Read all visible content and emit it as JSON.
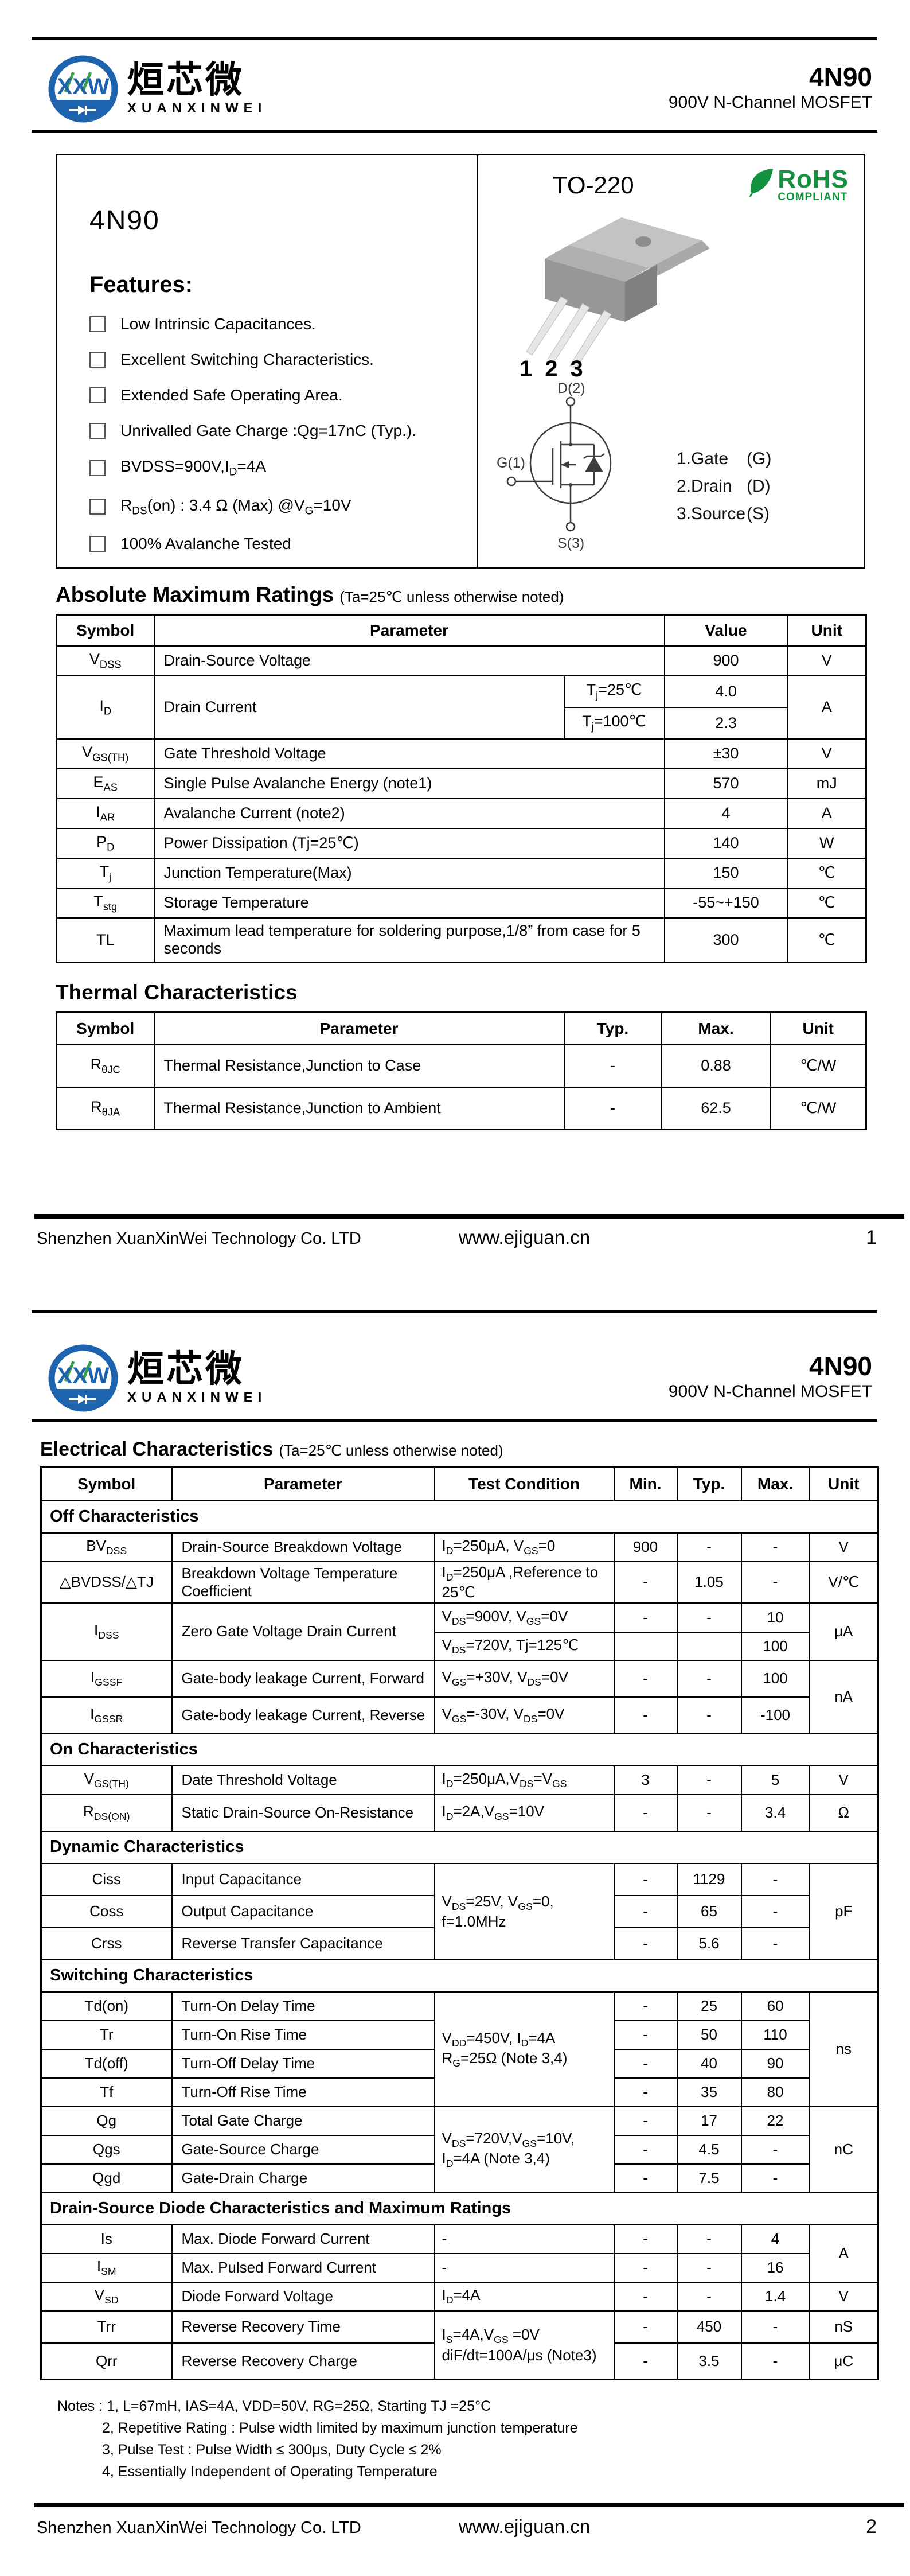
{
  "colors": {
    "brand_blue": "#1e63ad",
    "logo_green": "#35a048",
    "rohs_green": "#15923f",
    "text": "#000000"
  },
  "header": {
    "logo_monogram": "XXW",
    "brand_cn": "烜芯微",
    "brand_en": "XUANXINWEI",
    "part": "4N90",
    "subtitle": "900V N-Channel MOSFET"
  },
  "footer": {
    "company": "Shenzhen XuanXinWei Technology Co. LTD",
    "url": "www.ejiguan.cn",
    "page1": "1",
    "page2": "2"
  },
  "info": {
    "part": "4N90",
    "features_title": "Features:",
    "features": [
      "Low Intrinsic Capacitances.",
      "Excellent Switching Characteristics.",
      "Extended Safe Operating Area.",
      "Unrivalled Gate Charge :Qg=17nC (Typ.).",
      "BVDSS=900V,I<sub>D</sub>=4A",
      "R<sub>DS</sub>(on) : 3.4 Ω (Max) @V<sub>G</sub>=10V",
      "100% Avalanche Tested"
    ],
    "package_name": "TO-220",
    "rohs": {
      "line1": "RoHS",
      "line2": "COMPLIANT"
    },
    "pin_numbers": [
      "1",
      "2",
      "3"
    ],
    "symbol_labels": {
      "drain": "D(2)",
      "gate": "G(1)",
      "source": "S(3)"
    },
    "pin_legend": [
      {
        "name": "1.Gate",
        "pin": "(G)"
      },
      {
        "name": "2.Drain",
        "pin": "(D)"
      },
      {
        "name": "3.Source",
        "pin": "(S)"
      }
    ]
  },
  "abs_max": {
    "title": "Absolute Maximum Ratings",
    "note": "(Ta=25℃ unless otherwise noted)",
    "headers": [
      "Symbol",
      "Parameter",
      "Value",
      "Unit"
    ],
    "rows": {
      "vdss": {
        "sym": "V<sub>DSS</sub>",
        "param": "Drain-Source Voltage",
        "value": "900",
        "unit": "V"
      },
      "id": {
        "sym": "I<sub>D</sub>",
        "param": "Drain Current",
        "cond1": "T<sub>j</sub>=25℃",
        "val1": "4.0",
        "cond2": "T<sub>j</sub>=100℃",
        "val2": "2.3",
        "unit": "A"
      },
      "vgsth": {
        "sym": "V<sub>GS(TH)</sub>",
        "param": "Gate Threshold Voltage",
        "value": "±30",
        "unit": "V"
      },
      "eas": {
        "sym": "E<sub>AS</sub>",
        "param": "Single Pulse Avalanche Energy (note1)",
        "value": "570",
        "unit": "mJ"
      },
      "iar": {
        "sym": "I<sub>AR</sub>",
        "param": "Avalanche Current (note2)",
        "value": "4",
        "unit": "A"
      },
      "pd": {
        "sym": "P<sub>D</sub>",
        "param": "Power Dissipation (Tj=25℃)",
        "value": "140",
        "unit": "W"
      },
      "tj": {
        "sym": "T<sub>j</sub>",
        "param": "Junction Temperature(Max)",
        "value": "150",
        "unit": "℃"
      },
      "tstg": {
        "sym": "T<sub>stg</sub>",
        "param": "Storage Temperature",
        "value": "-55~+150",
        "unit": "℃"
      },
      "tl": {
        "sym": "TL",
        "param": "Maximum lead temperature for soldering purpose,1/8” from case for 5 seconds",
        "value": "300",
        "unit": "℃"
      }
    }
  },
  "thermal": {
    "title": "Thermal Characteristics",
    "headers": [
      "Symbol",
      "Parameter",
      "Typ.",
      "Max.",
      "Unit"
    ],
    "rows": {
      "rthjc": {
        "sym": "R<sub>θJC</sub>",
        "param": "Thermal Resistance,Junction to Case",
        "typ": "-",
        "max": "0.88",
        "unit": "℃/W"
      },
      "rthja": {
        "sym": "R<sub>θJA</sub>",
        "param": "Thermal Resistance,Junction to Ambient",
        "typ": "-",
        "max": "62.5",
        "unit": "℃/W"
      }
    }
  },
  "elec": {
    "title": "Electrical Characteristics",
    "note": "(Ta=25℃ unless otherwise noted)",
    "headers": [
      "Symbol",
      "Parameter",
      "Test Condition",
      "Min.",
      "Typ.",
      "Max.",
      "Unit"
    ],
    "sections": {
      "off": "Off Characteristics",
      "on": "On Characteristics",
      "dynamic": "Dynamic Characteristics",
      "switching": "Switching Characteristics",
      "diode": "Drain-Source Diode Characteristics and Maximum Ratings"
    },
    "rows": {
      "bvdss": {
        "sym": "BV<sub>DSS</sub>",
        "param": "Drain-Source Breakdown Voltage",
        "cond": "I<sub>D</sub>=250μA,  V<sub>GS</sub>=0",
        "min": "900",
        "typ": "-",
        "max": "-",
        "unit": "V"
      },
      "dbvdss": {
        "sym": "△BVDSS/△TJ",
        "param": "Breakdown Voltage Temperature Coefficient",
        "cond": "I<sub>D</sub>=250μA ,Reference to 25℃",
        "min": "-",
        "typ": "1.05",
        "max": "-",
        "unit": "V/℃"
      },
      "idss": {
        "sym": "I<sub>DSS</sub>",
        "param": "Zero Gate Voltage Drain Current",
        "cond1": "V<sub>DS</sub>=900V, V<sub>GS</sub>=0V",
        "min1": "-",
        "typ1": "-",
        "max1": "10",
        "cond2": "V<sub>DS</sub>=720V, Tj=125℃",
        "min2": "",
        "typ2": "",
        "max2": "100",
        "unit": "μA"
      },
      "igssf": {
        "sym": "I<sub>GSSF</sub>",
        "param": "Gate-body leakage Current, Forward",
        "cond": "V<sub>GS</sub>=+30V, V<sub>DS</sub>=0V",
        "min": "-",
        "typ": "-",
        "max": "100",
        "unit": "nA"
      },
      "igssr": {
        "sym": "I<sub>GSSR</sub>",
        "param": "Gate-body leakage Current, Reverse",
        "cond": "V<sub>GS</sub>=-30V, V<sub>DS</sub>=0V",
        "min": "-",
        "typ": "-",
        "max": "-100"
      },
      "vgsth": {
        "sym": "V<sub>GS(TH)</sub>",
        "param": "Date Threshold Voltage",
        "cond": "I<sub>D</sub>=250μA,V<sub>DS</sub>=V<sub>GS</sub>",
        "min": "3",
        "typ": "-",
        "max": "5",
        "unit": "V"
      },
      "rdson": {
        "sym": "R<sub>DS(ON)</sub>",
        "param": "Static Drain-Source On-Resistance",
        "cond": "I<sub>D</sub>=2A,V<sub>GS</sub>=10V",
        "min": "-",
        "typ": "-",
        "max": "3.4",
        "unit": "Ω"
      },
      "ciss": {
        "sym": "Ciss",
        "param": "Input Capacitance",
        "cond": "V<sub>DS</sub>=25V,  V<sub>GS</sub>=0, f=1.0MHz",
        "min": "-",
        "typ": "1129",
        "max": "-",
        "unit": "pF"
      },
      "coss": {
        "sym": "Coss",
        "param": "Output Capacitance",
        "min": "-",
        "typ": "65",
        "max": "-"
      },
      "crss": {
        "sym": "Crss",
        "param": "Reverse Transfer Capacitance",
        "min": "-",
        "typ": "5.6",
        "max": "-"
      },
      "tdon": {
        "sym": "Td(on)",
        "param": "Turn-On Delay Time",
        "cond": "V<sub>DD</sub>=450V,  I<sub>D</sub>=4A R<sub>G</sub>=25Ω (Note 3,4)",
        "min": "-",
        "typ": "25",
        "max": "60",
        "unit": "ns"
      },
      "tr": {
        "sym": "Tr",
        "param": "Turn-On Rise Time",
        "min": "-",
        "typ": "50",
        "max": "110"
      },
      "tdoff": {
        "sym": "Td(off)",
        "param": "Turn-Off Delay Time",
        "min": "-",
        "typ": "40",
        "max": "90"
      },
      "tf": {
        "sym": "Tf",
        "param": "Turn-Off Rise Time",
        "min": "-",
        "typ": "35",
        "max": "80"
      },
      "qg": {
        "sym": "Qg",
        "param": "Total Gate Charge",
        "cond": "V<sub>DS</sub>=720V,V<sub>GS</sub>=10V, I<sub>D</sub>=4A (Note 3,4)",
        "min": "-",
        "typ": "17",
        "max": "22",
        "unit": "nC"
      },
      "qgs": {
        "sym": "Qgs",
        "param": "Gate-Source Charge",
        "min": "-",
        "typ": "4.5",
        "max": "-"
      },
      "qgd": {
        "sym": "Qgd",
        "param": "Gate-Drain Charge",
        "min": "-",
        "typ": "7.5",
        "max": "-"
      },
      "is": {
        "sym": "Is",
        "param": "Max. Diode Forward Current",
        "cond": "-",
        "min": "-",
        "typ": "-",
        "max": "4",
        "unit": "A"
      },
      "ism": {
        "sym": "I<sub>SM</sub>",
        "param": "Max. Pulsed Forward Current",
        "cond": "-",
        "min": "-",
        "typ": "-",
        "max": "16"
      },
      "vsd": {
        "sym": "V<sub>SD</sub>",
        "param": "Diode Forward Voltage",
        "cond": "I<sub>D</sub>=4A",
        "min": "-",
        "typ": "-",
        "max": "1.4",
        "unit": "V"
      },
      "trr": {
        "sym": "Trr",
        "param": "Reverse Recovery Time",
        "cond": "I<sub>S</sub>=4A,V<sub>GS</sub> =0V diF/dt=100A/μs (Note3)",
        "min": "-",
        "typ": "450",
        "max": "-",
        "unit": "nS"
      },
      "qrr": {
        "sym": "Qrr",
        "param": "Reverse Recovery Charge",
        "min": "-",
        "typ": "3.5",
        "max": "-",
        "unit": "μC"
      }
    }
  },
  "notes": {
    "lines": [
      "Notes : 1, L=67mH, IAS=4A, VDD=50V, RG=25Ω, Starting TJ =25°C",
      "2, Repetitive Rating : Pulse width limited by maximum junction temperature",
      "3, Pulse Test : Pulse Width ≤ 300μs, Duty Cycle ≤ 2%",
      "4, Essentially Independent of Operating Temperature"
    ]
  }
}
